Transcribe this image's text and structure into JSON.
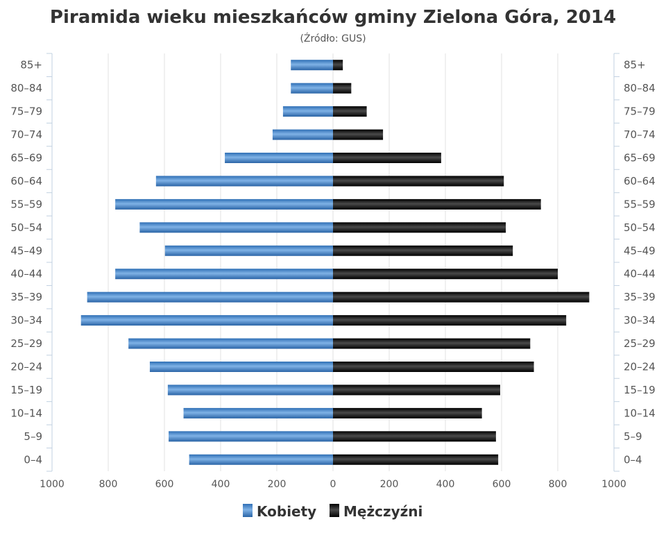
{
  "chart_data": {
    "type": "bar",
    "orientation": "horizontal",
    "title": "Piramida wieku mieszkańców gminy Zielona Góra, 2014",
    "subtitle": "(Źródło: GUS)",
    "categories": [
      "85+",
      "80–84",
      "75–79",
      "70–74",
      "65–69",
      "60–64",
      "55–59",
      "50–54",
      "45–49",
      "40–44",
      "35–39",
      "30–34",
      "25–29",
      "20–24",
      "15–19",
      "10–14",
      "5–9",
      "0–4"
    ],
    "series": [
      {
        "name": "Kobiety",
        "color": "#4a86c8",
        "side": "left",
        "values": [
          150,
          150,
          178,
          215,
          385,
          630,
          775,
          688,
          598,
          775,
          875,
          897,
          728,
          652,
          588,
          532,
          585,
          512
        ]
      },
      {
        "name": "Mężczyźni",
        "color": "#111111",
        "side": "right",
        "values": [
          35,
          65,
          120,
          178,
          385,
          608,
          740,
          615,
          640,
          800,
          912,
          830,
          702,
          715,
          595,
          530,
          580,
          588
        ]
      }
    ],
    "xlim": [
      -1000,
      1000
    ],
    "xtick_labels": [
      "1000",
      "800",
      "600",
      "400",
      "200",
      "0",
      "200",
      "400",
      "600",
      "800",
      "1000"
    ],
    "grid": true,
    "legend": "bottom"
  }
}
